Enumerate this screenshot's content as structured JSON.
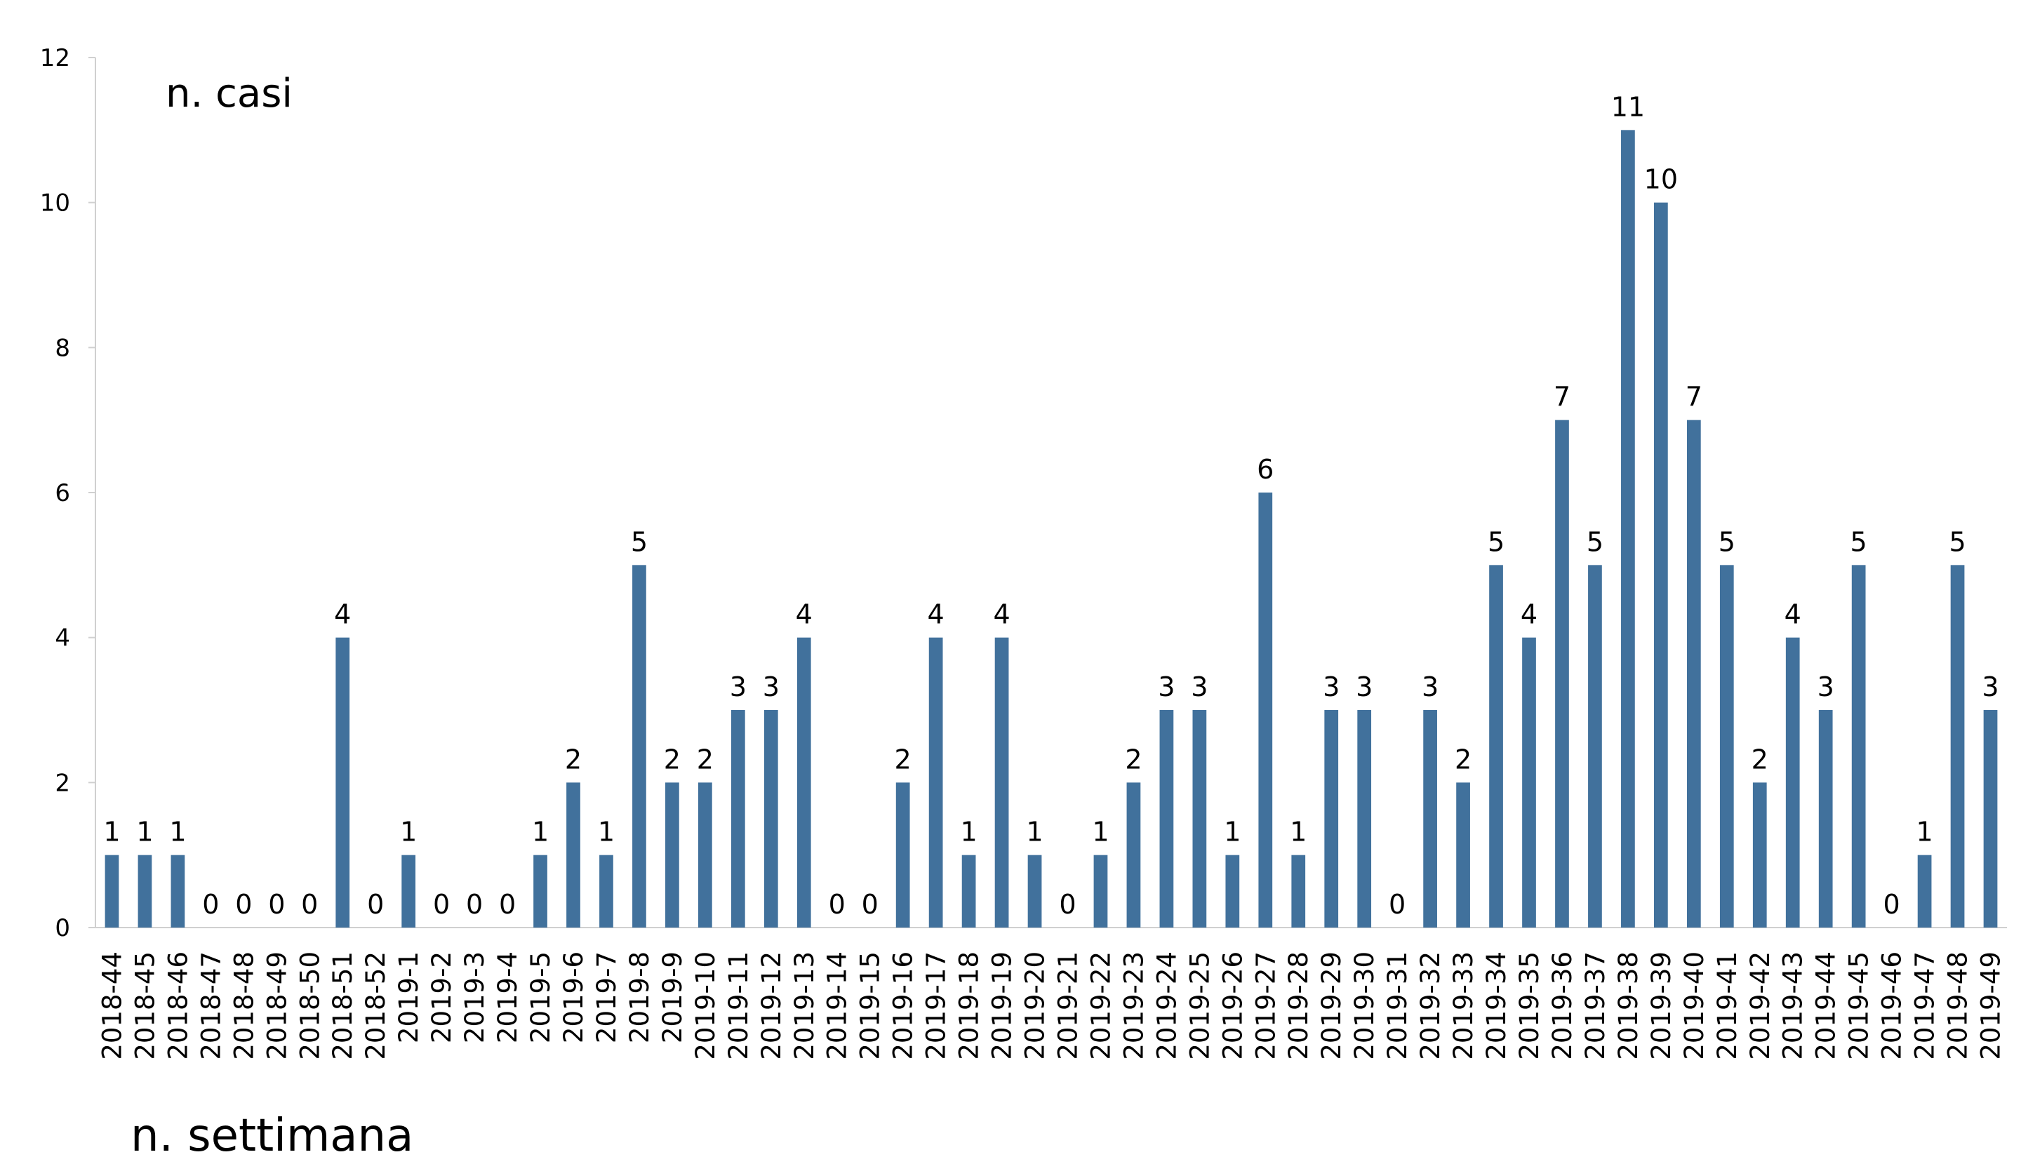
{
  "chart_data": {
    "type": "bar",
    "title": "",
    "ylabel": "n. casi",
    "xlabel": "n. settimana",
    "ylim": [
      0,
      12
    ],
    "yticks": [
      0,
      2,
      4,
      6,
      8,
      10,
      12
    ],
    "grid": false,
    "data_labels": true,
    "bar_color": "#41719C",
    "categories": [
      "2018-44",
      "2018-45",
      "2018-46",
      "2018-47",
      "2018-48",
      "2018-49",
      "2018-50",
      "2018-51",
      "2018-52",
      "2019-1",
      "2019-2",
      "2019-3",
      "2019-4",
      "2019-5",
      "2019-6",
      "2019-7",
      "2019-8",
      "2019-9",
      "2019-10",
      "2019-11",
      "2019-12",
      "2019-13",
      "2019-14",
      "2019-15",
      "2019-16",
      "2019-17",
      "2019-18",
      "2019-19",
      "2019-20",
      "2019-21",
      "2019-22",
      "2019-23",
      "2019-24",
      "2019-25",
      "2019-26",
      "2019-27",
      "2019-28",
      "2019-29",
      "2019-30",
      "2019-31",
      "2019-32",
      "2019-33",
      "2019-34",
      "2019-35",
      "2019-36",
      "2019-37",
      "2019-38",
      "2019-39",
      "2019-40",
      "2019-41",
      "2019-42",
      "2019-43",
      "2019-44",
      "2019-45",
      "2019-46",
      "2019-47",
      "2019-48",
      "2019-49"
    ],
    "values": [
      1,
      1,
      1,
      0,
      0,
      0,
      0,
      4,
      0,
      1,
      0,
      0,
      0,
      1,
      2,
      1,
      5,
      2,
      2,
      3,
      3,
      4,
      0,
      0,
      2,
      4,
      1,
      4,
      1,
      0,
      1,
      2,
      3,
      3,
      1,
      6,
      1,
      3,
      3,
      0,
      3,
      2,
      5,
      4,
      7,
      5,
      11,
      10,
      7,
      5,
      2,
      4,
      3,
      5,
      0,
      1,
      5,
      3
    ]
  }
}
